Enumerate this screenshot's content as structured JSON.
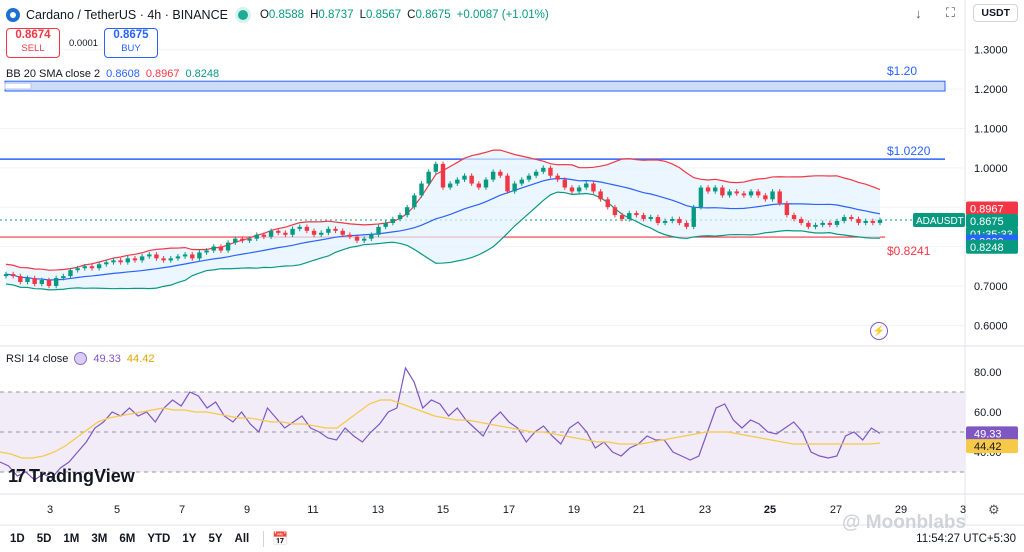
{
  "header": {
    "symbol": "Cardano / TetherUS · 4h · BINANCE",
    "ohlc": [
      {
        "k": "O",
        "v": "0.8588"
      },
      {
        "k": "H",
        "v": "0.8737"
      },
      {
        "k": "L",
        "v": "0.8567"
      },
      {
        "k": "C",
        "v": "0.8675"
      }
    ],
    "change": "+0.0087 (+1.01%)"
  },
  "trade": {
    "sell_price": "0.8674",
    "sell_label": "SELL",
    "buy_price": "0.8675",
    "buy_label": "BUY",
    "spread": "0.0001"
  },
  "toolbar_right": {
    "currency": "USDT",
    "down_icon": "arrow-down-icon",
    "fullscreen_icon": "fullscreen-icon"
  },
  "bb_legend": {
    "label": "BB 20 SMA close 2",
    "basis": "0.8608",
    "upper": "0.8967",
    "lower": "0.8248",
    "basis_color": "#2962ff",
    "upper_color": "#f23645",
    "lower_color": "#089981"
  },
  "rsi_legend": {
    "label": "RSI 14 close",
    "rsi": "49.33",
    "ma": "44.42",
    "rsi_color": "#7e57c2",
    "ma_color": "#f7c948"
  },
  "levels": [
    {
      "label": "$1.20",
      "color": "#2962ff"
    },
    {
      "label": "$1.0220",
      "color": "#2962ff"
    },
    {
      "label": "$0.8241",
      "color": "#f23645"
    }
  ],
  "price_tags": [
    {
      "text": "0.8967",
      "bg": "#f23645",
      "fg": "#ffffff"
    },
    {
      "text": "0.8675",
      "bg": "#089981",
      "fg": "#ffffff"
    },
    {
      "text": "01:35:33",
      "bg": "#089981",
      "fg": "#ffffff"
    },
    {
      "text": "0.8608",
      "bg": "#2962ff",
      "fg": "#ffffff"
    },
    {
      "text": "0.8248",
      "bg": "#089981",
      "fg": "#ffffff"
    }
  ],
  "symbol_tag": "ADAUSDT",
  "rsi_tags": [
    {
      "text": "49.33",
      "bg": "#7e57c2",
      "fg": "#ffffff"
    },
    {
      "text": "44.42",
      "bg": "#f7c948",
      "fg": "#131722"
    }
  ],
  "price_axis": [
    "1.3000",
    "1.2000",
    "1.1000",
    "1.0000",
    "0.9000",
    "0.8000",
    "0.7000",
    "0.6000"
  ],
  "rsi_axis": [
    "80.00",
    "60.00",
    "40.00"
  ],
  "time_axis": [
    "3",
    "5",
    "7",
    "9",
    "11",
    "13",
    "15",
    "17",
    "19",
    "21",
    "23",
    "25",
    "27",
    "29",
    "3"
  ],
  "bottom": {
    "timeframes": [
      "1D",
      "5D",
      "1M",
      "3M",
      "6M",
      "YTD",
      "1Y",
      "5Y",
      "All"
    ],
    "time": "11:54:27 UTC+5:30",
    "calendar_icon": "calendar-icon"
  },
  "branding": {
    "tv": "TradingView",
    "watermark": "@ Moonblabs"
  },
  "chart_data": {
    "type": "candlestick",
    "symbol": "ADAUSDT",
    "interval": "4h",
    "ylim": [
      0.55,
      1.35
    ],
    "rsi_ylim": [
      20,
      90
    ],
    "closes": [
      0.73,
      0.725,
      0.71,
      0.72,
      0.705,
      0.715,
      0.7,
      0.72,
      0.725,
      0.74,
      0.745,
      0.75,
      0.745,
      0.755,
      0.76,
      0.765,
      0.76,
      0.77,
      0.765,
      0.775,
      0.78,
      0.77,
      0.765,
      0.77,
      0.775,
      0.78,
      0.77,
      0.785,
      0.79,
      0.8,
      0.79,
      0.81,
      0.82,
      0.815,
      0.82,
      0.83,
      0.825,
      0.84,
      0.835,
      0.83,
      0.845,
      0.85,
      0.84,
      0.83,
      0.835,
      0.845,
      0.84,
      0.83,
      0.825,
      0.815,
      0.82,
      0.83,
      0.85,
      0.86,
      0.87,
      0.88,
      0.9,
      0.93,
      0.96,
      0.99,
      1.01,
      0.95,
      0.96,
      0.97,
      0.98,
      0.96,
      0.95,
      0.97,
      0.99,
      0.98,
      0.94,
      0.96,
      0.97,
      0.98,
      0.99,
      1.0,
      0.98,
      0.97,
      0.95,
      0.94,
      0.95,
      0.96,
      0.94,
      0.92,
      0.9,
      0.88,
      0.87,
      0.885,
      0.88,
      0.87,
      0.875,
      0.86,
      0.865,
      0.87,
      0.86,
      0.85,
      0.9,
      0.95,
      0.94,
      0.95,
      0.93,
      0.94,
      0.935,
      0.93,
      0.94,
      0.93,
      0.92,
      0.94,
      0.91,
      0.88,
      0.87,
      0.86,
      0.85,
      0.855,
      0.86,
      0.855,
      0.865,
      0.875,
      0.87,
      0.86,
      0.865,
      0.86,
      0.8675
    ],
    "rsi": [
      35,
      33,
      28,
      30,
      26,
      29,
      27,
      32,
      35,
      40,
      45,
      52,
      55,
      60,
      58,
      62,
      58,
      60,
      55,
      62,
      66,
      63,
      70,
      68,
      62,
      65,
      58,
      55,
      60,
      54,
      50,
      62,
      57,
      52,
      55,
      58,
      52,
      50,
      47,
      46,
      52,
      48,
      45,
      50,
      54,
      60,
      62,
      82,
      75,
      62,
      66,
      64,
      58,
      62,
      56,
      52,
      48,
      56,
      60,
      55,
      52,
      45,
      50,
      53,
      48,
      44,
      52,
      55,
      50,
      42,
      45,
      40,
      38,
      42,
      44,
      48,
      46,
      46,
      40,
      38,
      36,
      38,
      50,
      62,
      64,
      56,
      52,
      56,
      54,
      50,
      49,
      52,
      55,
      50,
      40,
      38,
      37,
      38,
      48,
      50,
      46,
      52,
      49.33
    ],
    "rsi_ma": [
      40,
      39,
      37,
      37,
      38,
      40,
      43,
      47,
      51,
      55,
      57,
      58,
      59,
      60,
      61,
      62,
      61,
      61,
      60,
      60,
      59,
      58,
      57,
      57,
      56,
      55,
      55,
      54,
      54,
      53,
      52,
      52,
      56,
      60,
      64,
      66,
      66,
      64,
      62,
      60,
      58,
      57,
      56,
      56,
      55,
      54,
      53,
      52,
      51,
      50,
      50,
      49,
      48,
      47,
      46,
      45,
      45,
      44,
      44,
      44,
      45,
      46,
      47,
      48,
      49,
      50,
      50,
      50,
      49,
      48,
      47,
      46,
      45,
      44,
      44,
      44,
      44,
      44,
      44,
      44,
      44,
      44.42
    ]
  }
}
